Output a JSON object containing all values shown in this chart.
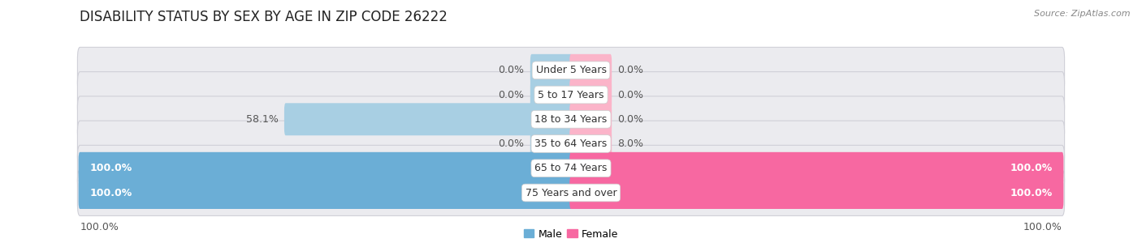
{
  "title": "DISABILITY STATUS BY SEX BY AGE IN ZIP CODE 26222",
  "source": "Source: ZipAtlas.com",
  "categories": [
    "Under 5 Years",
    "5 to 17 Years",
    "18 to 34 Years",
    "35 to 64 Years",
    "65 to 74 Years",
    "75 Years and over"
  ],
  "male_values": [
    0.0,
    0.0,
    58.1,
    0.0,
    100.0,
    100.0
  ],
  "female_values": [
    0.0,
    0.0,
    0.0,
    8.0,
    100.0,
    100.0
  ],
  "male_color": "#6baed6",
  "female_color": "#f768a1",
  "male_color_light": "#a8cfe3",
  "female_color_light": "#fbb4c9",
  "male_label": "Male",
  "female_label": "Female",
  "bar_bg_color": "#e8e8ec",
  "row_bg_color": "#ebebef",
  "stub_size": 8.0,
  "title_fontsize": 12,
  "label_fontsize": 9,
  "category_fontsize": 9,
  "source_fontsize": 8,
  "background_color": "#ffffff"
}
